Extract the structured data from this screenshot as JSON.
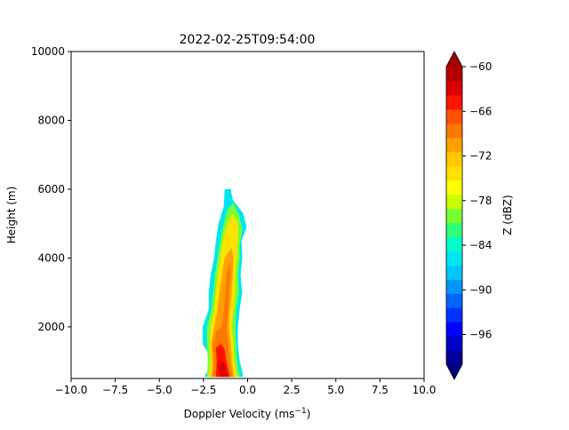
{
  "chart_data": {
    "type": "contour",
    "title": "2022-02-25T09:54:00",
    "xlabel": "Doppler Velocity (ms",
    "xlabel_sup": "−1",
    "xlabel_tail": ")",
    "ylabel": "Height (m)",
    "xlim": [
      -10,
      10
    ],
    "ylim": [
      500,
      10000
    ],
    "xticks": [
      -10,
      -7.5,
      -5,
      -2.5,
      0,
      2.5,
      5,
      7.5,
      10
    ],
    "xtick_labels": [
      "−10.0",
      "−7.5",
      "−5.0",
      "−2.5",
      "0.0",
      "2.5",
      "5.0",
      "7.5",
      "10.0"
    ],
    "yticks": [
      2000,
      4000,
      6000,
      8000,
      10000
    ],
    "ytick_labels": [
      "2000",
      "4000",
      "6000",
      "8000",
      "10000"
    ],
    "colorbar": {
      "label": "Z (dBZ)",
      "range": [
        -100,
        -60
      ],
      "step": 2,
      "extend": "both",
      "ticks": [
        -96,
        -90,
        -84,
        -78,
        -72,
        -66,
        -60
      ],
      "tick_labels": [
        "−96",
        "−90",
        "−84",
        "−78",
        "−72",
        "−66",
        "−60"
      ],
      "colors": [
        "#000096",
        "#0000c8",
        "#0000ff",
        "#0032ff",
        "#0064ff",
        "#0096ff",
        "#00c8ff",
        "#00e6f0",
        "#00ffc8",
        "#32ff78",
        "#78ff32",
        "#c8ff00",
        "#ffff00",
        "#ffe100",
        "#ffc800",
        "#ffa000",
        "#ff7800",
        "#ff5000",
        "#ff1400",
        "#dc0000",
        "#b40000"
      ],
      "under_color": "#00007f",
      "over_color": "#a00000"
    },
    "contours": [
      {
        "level": -86,
        "color": "#00e6f0",
        "points": [
          [
            -2.45,
            550
          ],
          [
            -1.95,
            1000
          ],
          [
            -2.55,
            1500
          ],
          [
            -2.55,
            2000
          ],
          [
            -2.2,
            2500
          ],
          [
            -2.2,
            3000
          ],
          [
            -2.1,
            3500
          ],
          [
            -1.9,
            4000
          ],
          [
            -1.8,
            4500
          ],
          [
            -1.65,
            5000
          ],
          [
            -1.35,
            5500
          ],
          [
            -1.3,
            6000
          ],
          [
            -0.95,
            6000
          ],
          [
            -0.85,
            5700
          ],
          [
            -0.25,
            5300
          ],
          [
            -0.05,
            4900
          ],
          [
            -0.35,
            4500
          ],
          [
            -0.3,
            4000
          ],
          [
            -0.4,
            3500
          ],
          [
            -0.3,
            3000
          ],
          [
            -0.45,
            2500
          ],
          [
            -0.55,
            2000
          ],
          [
            -0.55,
            1500
          ],
          [
            -0.45,
            1000
          ],
          [
            -0.3,
            700
          ],
          [
            -0.25,
            550
          ]
        ]
      },
      {
        "level": -80,
        "color": "#78ff32",
        "points": [
          [
            -2.3,
            550
          ],
          [
            -2.25,
            1000
          ],
          [
            -2.3,
            1500
          ],
          [
            -2.3,
            2000
          ],
          [
            -2.05,
            2500
          ],
          [
            -1.95,
            3000
          ],
          [
            -1.85,
            3500
          ],
          [
            -1.7,
            4000
          ],
          [
            -1.55,
            4500
          ],
          [
            -1.35,
            5000
          ],
          [
            -1.15,
            5400
          ],
          [
            -0.8,
            5600
          ],
          [
            -0.45,
            5200
          ],
          [
            -0.3,
            4800
          ],
          [
            -0.45,
            4400
          ],
          [
            -0.45,
            4000
          ],
          [
            -0.55,
            3500
          ],
          [
            -0.5,
            3000
          ],
          [
            -0.65,
            2500
          ],
          [
            -0.7,
            2000
          ],
          [
            -0.65,
            1500
          ],
          [
            -0.6,
            1000
          ],
          [
            -0.45,
            550
          ]
        ]
      },
      {
        "level": -74,
        "color": "#ffe100",
        "points": [
          [
            -2.2,
            550
          ],
          [
            -2.1,
            1000
          ],
          [
            -2.15,
            1500
          ],
          [
            -2.1,
            2000
          ],
          [
            -1.9,
            2500
          ],
          [
            -1.8,
            3000
          ],
          [
            -1.7,
            3500
          ],
          [
            -1.55,
            4000
          ],
          [
            -1.4,
            4500
          ],
          [
            -1.15,
            5000
          ],
          [
            -0.85,
            5300
          ],
          [
            -0.55,
            5000
          ],
          [
            -0.55,
            4500
          ],
          [
            -0.6,
            4000
          ],
          [
            -0.7,
            3500
          ],
          [
            -0.7,
            3000
          ],
          [
            -0.8,
            2500
          ],
          [
            -0.9,
            2000
          ],
          [
            -0.8,
            1500
          ],
          [
            -0.75,
            1000
          ],
          [
            -0.6,
            550
          ]
        ]
      },
      {
        "level": -70,
        "color": "#ffa000",
        "points": [
          [
            -2.05,
            550
          ],
          [
            -2.0,
            1000
          ],
          [
            -2.05,
            1500
          ],
          [
            -1.9,
            2000
          ],
          [
            -1.7,
            2500
          ],
          [
            -1.6,
            3000
          ],
          [
            -1.45,
            3500
          ],
          [
            -1.3,
            4000
          ],
          [
            -0.9,
            4300
          ],
          [
            -0.8,
            4000
          ],
          [
            -0.85,
            3500
          ],
          [
            -0.9,
            3000
          ],
          [
            -1.0,
            2500
          ],
          [
            -1.05,
            2000
          ],
          [
            -0.95,
            1500
          ],
          [
            -0.9,
            1000
          ],
          [
            -0.75,
            550
          ]
        ]
      },
      {
        "level": -66,
        "color": "#ff7800",
        "points": [
          [
            -1.95,
            550
          ],
          [
            -1.9,
            1000
          ],
          [
            -1.95,
            1500
          ],
          [
            -1.75,
            1900
          ],
          [
            -1.45,
            2000
          ],
          [
            -1.35,
            2500
          ],
          [
            -1.25,
            3000
          ],
          [
            -1.2,
            3500
          ],
          [
            -1.05,
            3900
          ],
          [
            -0.95,
            3500
          ],
          [
            -1.05,
            3000
          ],
          [
            -1.1,
            2500
          ],
          [
            -1.2,
            2000
          ],
          [
            -1.1,
            1500
          ],
          [
            -1.0,
            1000
          ],
          [
            -0.85,
            550
          ]
        ]
      },
      {
        "level": -62,
        "color": "#ff1400",
        "points": [
          [
            -1.8,
            550
          ],
          [
            -1.75,
            1000
          ],
          [
            -1.8,
            1400
          ],
          [
            -1.5,
            1500
          ],
          [
            -1.3,
            1350
          ],
          [
            -1.2,
            1000
          ],
          [
            -1.0,
            550
          ]
        ]
      },
      {
        "level": -60,
        "color": "#dc0000",
        "points": [
          [
            -1.55,
            550
          ],
          [
            -1.65,
            900
          ],
          [
            -1.55,
            1000
          ],
          [
            -1.3,
            950
          ],
          [
            -1.2,
            700
          ],
          [
            -1.15,
            550
          ]
        ]
      }
    ]
  }
}
